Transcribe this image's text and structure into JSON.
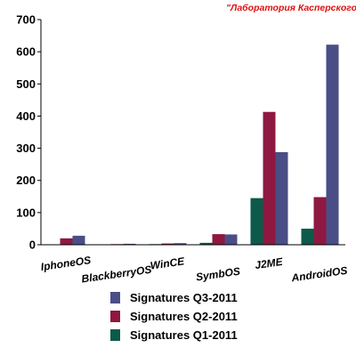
{
  "source_label": "\"Лаборатория Касперского\"",
  "chart_data": {
    "type": "bar",
    "categories": [
      "IphoneOS",
      "BlackberryOS",
      "WinCE",
      "SymbOS",
      "J2ME",
      "AndroidOS"
    ],
    "series": [
      {
        "name": "Signatures Q1-2011",
        "color": "#0d5a4a",
        "values": [
          0,
          0,
          2,
          6,
          145,
          50
        ]
      },
      {
        "name": "Signatures Q2-2011",
        "color": "#8e1842",
        "values": [
          20,
          2,
          4,
          33,
          413,
          148
        ]
      },
      {
        "name": "Signatures Q3-2011",
        "color": "#4a4e86",
        "values": [
          28,
          3,
          5,
          32,
          288,
          622
        ]
      }
    ],
    "legend_order": [
      2,
      1,
      0
    ],
    "legend_position": "bottom",
    "ylim": [
      0,
      700
    ],
    "yticks": [
      0,
      100,
      200,
      300,
      400,
      500,
      600,
      700
    ],
    "grid": false,
    "title": "",
    "xlabel": "",
    "ylabel": ""
  }
}
